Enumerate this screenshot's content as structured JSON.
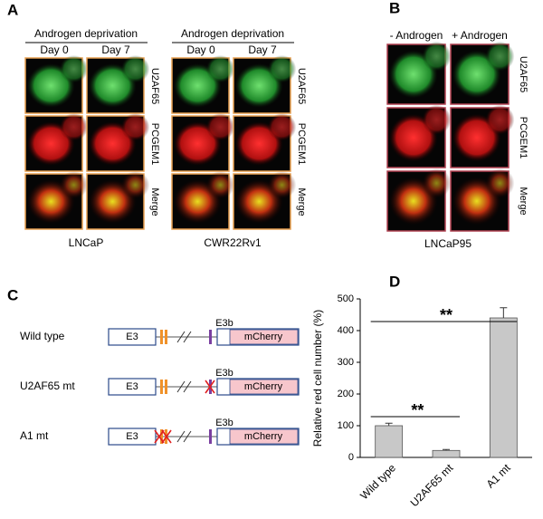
{
  "panel_a": {
    "label": "A",
    "groups": [
      {
        "header": "Androgen deprivation",
        "columns": [
          "Day 0",
          "Day 7"
        ],
        "cell_line": "LNCaP"
      },
      {
        "header": "Androgen deprivation",
        "columns": [
          "Day 0",
          "Day 7"
        ],
        "cell_line": "CWR22Rv1"
      }
    ],
    "rows": [
      "U2AF65",
      "PCGEM1",
      "Merge"
    ]
  },
  "panel_b": {
    "label": "B",
    "columns": [
      "- Androgen",
      "+ Androgen"
    ],
    "rows": [
      "U2AF65",
      "PCGEM1",
      "Merge"
    ],
    "cell_line": "LNCaP95"
  },
  "panel_c": {
    "label": "C",
    "constructs": [
      "Wild type",
      "U2AF65 mt",
      "A1 mt"
    ],
    "exon1": "E3",
    "exon2": "E3b",
    "reporter": "mCherry"
  },
  "chart_data": {
    "panel_label": "D",
    "type": "bar",
    "ylabel": "Relative red cell number (%)",
    "categories": [
      "Wild type",
      "U2AF65 mt",
      "A1 mt"
    ],
    "values": [
      100,
      22,
      440
    ],
    "errors": [
      8,
      3,
      32
    ],
    "color": "#c8c8c8",
    "ylim": [
      0,
      500
    ],
    "yticks": [
      0,
      100,
      200,
      300,
      400,
      500
    ],
    "annotations": [
      {
        "text": "**",
        "from": 0,
        "to": 2
      },
      {
        "text": "**",
        "from": 0,
        "to": 1
      }
    ]
  }
}
